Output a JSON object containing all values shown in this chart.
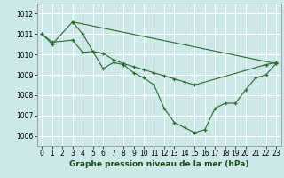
{
  "title": "Graphe pression niveau de la mer (hPa)",
  "bg_color": "#cce8e8",
  "grid_color": "#ffffff",
  "line_color": "#2d6a2d",
  "xlim": [
    -0.5,
    23.5
  ],
  "ylim": [
    1005.5,
    1012.5
  ],
  "xticks": [
    0,
    1,
    2,
    3,
    4,
    5,
    6,
    7,
    8,
    9,
    10,
    11,
    12,
    13,
    14,
    15,
    16,
    17,
    18,
    19,
    20,
    21,
    22,
    23
  ],
  "yticks": [
    1006,
    1007,
    1008,
    1009,
    1010,
    1011,
    1012
  ],
  "series1_x": [
    0,
    1,
    3,
    4,
    6,
    7,
    8,
    9,
    10,
    11,
    12,
    13,
    14,
    15,
    16,
    17,
    18,
    19,
    20,
    21,
    22,
    23
  ],
  "series1_y": [
    1011.0,
    1010.5,
    1011.6,
    1011.0,
    1009.3,
    1009.6,
    1009.5,
    1009.1,
    1008.85,
    1008.5,
    1007.35,
    1006.65,
    1006.4,
    1006.15,
    1006.3,
    1007.35,
    1007.6,
    1007.6,
    1008.25,
    1008.85,
    1009.0,
    1009.55
  ],
  "series2_x": [
    0,
    1,
    3,
    4,
    5,
    6,
    7,
    8,
    9,
    10,
    11,
    12,
    13,
    14,
    15,
    22,
    23
  ],
  "series2_y": [
    1011.0,
    1010.6,
    1010.7,
    1010.1,
    1010.15,
    1010.05,
    1009.75,
    1009.55,
    1009.4,
    1009.25,
    1009.1,
    1008.95,
    1008.8,
    1008.65,
    1008.5,
    1009.5,
    1009.6
  ],
  "series3_x": [
    3,
    23
  ],
  "series3_y": [
    1011.6,
    1009.55
  ],
  "tick_fontsize": 5.5,
  "title_fontsize": 6.5,
  "title_color": "#1a4a1a",
  "lw": 0.8,
  "ms": 2.5
}
